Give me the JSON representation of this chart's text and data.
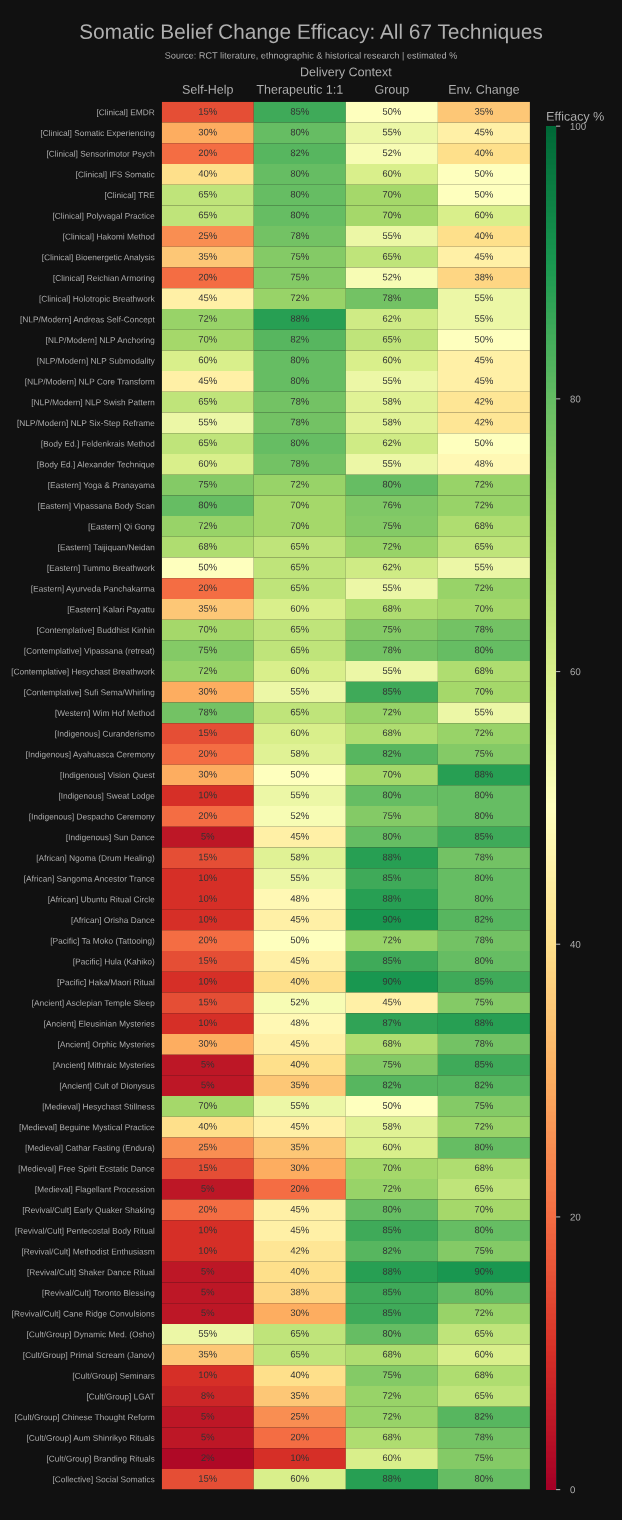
{
  "chart_data": {
    "type": "heatmap",
    "title": "Somatic Belief Change Efficacy: All 67 Techniques",
    "subtitle": "Source: RCT literature, ethnographic & historical research | estimated %",
    "xlabel": "Delivery Context",
    "clabel": "Efficacy %",
    "categories": [
      "Self-Help",
      "Therapeutic 1:1",
      "Group",
      "Env. Change"
    ],
    "y_categories": [
      "[Clinical] EMDR",
      "[Clinical] Somatic Experiencing",
      "[Clinical] Sensorimotor Psych",
      "[Clinical] IFS Somatic",
      "[Clinical] TRE",
      "[Clinical] Polyvagal Practice",
      "[Clinical] Hakomi Method",
      "[Clinical] Bioenergetic Analysis",
      "[Clinical] Reichian Armoring",
      "[Clinical] Holotropic Breathwork",
      "[NLP/Modern] Andreas Self-Concept",
      "[NLP/Modern] NLP Anchoring",
      "[NLP/Modern] NLP Submodality",
      "[NLP/Modern] NLP Core Transform",
      "[NLP/Modern] NLP Swish Pattern",
      "[NLP/Modern] NLP Six-Step Reframe",
      "[Body Ed.] Feldenkrais Method",
      "[Body Ed.] Alexander Technique",
      "[Eastern] Yoga & Pranayama",
      "[Eastern] Vipassana Body Scan",
      "[Eastern] Qi Gong",
      "[Eastern] Taijiquan/Neidan",
      "[Eastern] Tummo Breathwork",
      "[Eastern] Ayurveda Panchakarma",
      "[Eastern] Kalari Payattu",
      "[Contemplative] Buddhist Kinhin",
      "[Contemplative] Vipassana (retreat)",
      "[Contemplative] Hesychast Breathwork",
      "[Contemplative] Sufi Sema/Whirling",
      "[Western] Wim Hof Method",
      "[Indigenous] Curanderismo",
      "[Indigenous] Ayahuasca Ceremony",
      "[Indigenous] Vision Quest",
      "[Indigenous] Sweat Lodge",
      "[Indigenous] Despacho Ceremony",
      "[Indigenous] Sun Dance",
      "[African] Ngoma (Drum Healing)",
      "[African] Sangoma Ancestor Trance",
      "[African] Ubuntu Ritual Circle",
      "[African] Orisha Dance",
      "[Pacific] Ta Moko (Tattooing)",
      "[Pacific] Hula (Kahiko)",
      "[Pacific] Haka/Maori Ritual",
      "[Ancient] Asclepian Temple Sleep",
      "[Ancient] Eleusinian Mysteries",
      "[Ancient] Orphic Mysteries",
      "[Ancient] Mithraic Mysteries",
      "[Ancient] Cult of Dionysus",
      "[Medieval] Hesychast Stillness",
      "[Medieval] Beguine Mystical Practice",
      "[Medieval] Cathar Fasting (Endura)",
      "[Medieval] Free Spirit Ecstatic Dance",
      "[Medieval] Flagellant Procession",
      "[Revival/Cult] Early Quaker Shaking",
      "[Revival/Cult] Pentecostal Body Ritual",
      "[Revival/Cult] Methodist Enthusiasm",
      "[Revival/Cult] Shaker Dance Ritual",
      "[Revival/Cult] Toronto Blessing",
      "[Revival/Cult] Cane Ridge Convulsions",
      "[Cult/Group] Dynamic Med. (Osho)",
      "[Cult/Group] Primal Scream (Janov)",
      "[Cult/Group] Seminars",
      "[Cult/Group] LGAT",
      "[Cult/Group] Chinese Thought Reform",
      "[Cult/Group] Aum Shinrikyo Rituals",
      "[Cult/Group] Branding Rituals",
      "[Collective] Social Somatics"
    ],
    "cells": [
      [
        15,
        85,
        50,
        35
      ],
      [
        30,
        80,
        55,
        45
      ],
      [
        20,
        82,
        52,
        40
      ],
      [
        40,
        80,
        60,
        50
      ],
      [
        65,
        80,
        70,
        50
      ],
      [
        65,
        80,
        70,
        60
      ],
      [
        25,
        78,
        55,
        40
      ],
      [
        35,
        75,
        65,
        45
      ],
      [
        20,
        75,
        52,
        38
      ],
      [
        45,
        72,
        78,
        55
      ],
      [
        72,
        88,
        62,
        55
      ],
      [
        70,
        82,
        65,
        50
      ],
      [
        60,
        80,
        60,
        45
      ],
      [
        45,
        80,
        55,
        45
      ],
      [
        65,
        78,
        58,
        42
      ],
      [
        55,
        78,
        58,
        42
      ],
      [
        65,
        80,
        62,
        50
      ],
      [
        60,
        78,
        55,
        48
      ],
      [
        75,
        72,
        80,
        72
      ],
      [
        80,
        70,
        76,
        72
      ],
      [
        72,
        70,
        75,
        68
      ],
      [
        68,
        65,
        72,
        65
      ],
      [
        50,
        65,
        62,
        55
      ],
      [
        20,
        65,
        55,
        72
      ],
      [
        35,
        60,
        68,
        70
      ],
      [
        70,
        65,
        75,
        78
      ],
      [
        75,
        65,
        78,
        80
      ],
      [
        72,
        60,
        55,
        68
      ],
      [
        30,
        55,
        85,
        70
      ],
      [
        78,
        65,
        72,
        55
      ],
      [
        15,
        60,
        68,
        72
      ],
      [
        20,
        58,
        82,
        75
      ],
      [
        30,
        50,
        70,
        88
      ],
      [
        10,
        55,
        80,
        80
      ],
      [
        20,
        52,
        75,
        80
      ],
      [
        5,
        45,
        80,
        85
      ],
      [
        15,
        58,
        88,
        78
      ],
      [
        10,
        55,
        85,
        80
      ],
      [
        10,
        48,
        88,
        80
      ],
      [
        10,
        45,
        90,
        82
      ],
      [
        20,
        50,
        72,
        78
      ],
      [
        15,
        45,
        85,
        80
      ],
      [
        10,
        40,
        90,
        85
      ],
      [
        15,
        52,
        45,
        75
      ],
      [
        10,
        48,
        87,
        88
      ],
      [
        30,
        45,
        68,
        78
      ],
      [
        5,
        40,
        75,
        85
      ],
      [
        5,
        35,
        82,
        82
      ],
      [
        70,
        55,
        50,
        75
      ],
      [
        40,
        45,
        58,
        72
      ],
      [
        25,
        35,
        60,
        80
      ],
      [
        15,
        30,
        70,
        68
      ],
      [
        5,
        20,
        72,
        65
      ],
      [
        20,
        45,
        80,
        70
      ],
      [
        10,
        45,
        85,
        80
      ],
      [
        10,
        42,
        82,
        75
      ],
      [
        5,
        40,
        88,
        90
      ],
      [
        5,
        38,
        85,
        80
      ],
      [
        5,
        30,
        85,
        72
      ],
      [
        55,
        65,
        80,
        65
      ],
      [
        35,
        65,
        68,
        60
      ],
      [
        10,
        40,
        75,
        68
      ],
      [
        8,
        35,
        72,
        65
      ],
      [
        5,
        25,
        72,
        82
      ],
      [
        5,
        20,
        68,
        78
      ],
      [
        2,
        10,
        60,
        75
      ],
      [
        15,
        60,
        88,
        80
      ]
    ],
    "cell_labels": [
      [
        "15%",
        "85%",
        "50%",
        "35%"
      ],
      [
        "30%",
        "80%",
        "55%",
        "45%"
      ],
      [
        "20%",
        "82%",
        "52%",
        "40%"
      ],
      [
        "40%",
        "80%",
        "60%",
        "50%"
      ],
      [
        "65%",
        "80%",
        "70%",
        "50%"
      ],
      [
        "65%",
        "80%",
        "70%",
        "60%"
      ],
      [
        "25%",
        "78%",
        "55%",
        "40%"
      ],
      [
        "35%",
        "75%",
        "65%",
        "45%"
      ],
      [
        "20%",
        "75%",
        "52%",
        "38%"
      ],
      [
        "45%",
        "72%",
        "78%",
        "55%"
      ],
      [
        "72%",
        "88%",
        "62%",
        "55%"
      ],
      [
        "70%",
        "82%",
        "65%",
        "50%"
      ],
      [
        "60%",
        "80%",
        "60%",
        "45%"
      ],
      [
        "45%",
        "80%",
        "55%",
        "45%"
      ],
      [
        "65%",
        "78%",
        "58%",
        "42%"
      ],
      [
        "55%",
        "78%",
        "58%",
        "42%"
      ],
      [
        "65%",
        "80%",
        "62%",
        "50%"
      ],
      [
        "60%",
        "78%",
        "55%",
        "48%"
      ],
      [
        "75%",
        "72%",
        "80%",
        "72%"
      ],
      [
        "80%",
        "70%",
        "76%",
        "72%"
      ],
      [
        "72%",
        "70%",
        "75%",
        "68%"
      ],
      [
        "68%",
        "65%",
        "72%",
        "65%"
      ],
      [
        "50%",
        "65%",
        "62%",
        "55%"
      ],
      [
        "20%",
        "65%",
        "55%",
        "72%"
      ],
      [
        "35%",
        "60%",
        "68%",
        "70%"
      ],
      [
        "70%",
        "65%",
        "75%",
        "78%"
      ],
      [
        "75%",
        "65%",
        "78%",
        "80%"
      ],
      [
        "72%",
        "60%",
        "55%",
        "68%"
      ],
      [
        "30%",
        "55%",
        "85%",
        "70%"
      ],
      [
        "78%",
        "65%",
        "72%",
        "55%"
      ],
      [
        "15%",
        "60%",
        "68%",
        "72%"
      ],
      [
        "20%",
        "58%",
        "82%",
        "75%"
      ],
      [
        "30%",
        "50%",
        "70%",
        "88%"
      ],
      [
        "10%",
        "55%",
        "80%",
        "80%"
      ],
      [
        "20%",
        "52%",
        "75%",
        "80%"
      ],
      [
        "5%",
        "45%",
        "80%",
        "85%"
      ],
      [
        "15%",
        "58%",
        "88%",
        "78%"
      ],
      [
        "10%",
        "55%",
        "85%",
        "80%"
      ],
      [
        "10%",
        "48%",
        "88%",
        "80%"
      ],
      [
        "10%",
        "45%",
        "90%",
        "82%"
      ],
      [
        "20%",
        "50%",
        "72%",
        "78%"
      ],
      [
        "15%",
        "45%",
        "85%",
        "80%"
      ],
      [
        "10%",
        "40%",
        "90%",
        "85%"
      ],
      [
        "15%",
        "52%",
        "45%",
        "75%"
      ],
      [
        "10%",
        "48%",
        "87%",
        "88%"
      ],
      [
        "30%",
        "45%",
        "68%",
        "78%"
      ],
      [
        "5%",
        "40%",
        "75%",
        "85%"
      ],
      [
        "5%",
        "35%",
        "82%",
        "82%"
      ],
      [
        "70%",
        "55%",
        "50%",
        "75%"
      ],
      [
        "40%",
        "45%",
        "58%",
        "72%"
      ],
      [
        "25%",
        "35%",
        "60%",
        "80%"
      ],
      [
        "15%",
        "30%",
        "70%",
        "68%"
      ],
      [
        "5%",
        "20%",
        "72%",
        "65%"
      ],
      [
        "20%",
        "45%",
        "80%",
        "70%"
      ],
      [
        "10%",
        "45%",
        "85%",
        "80%"
      ],
      [
        "10%",
        "42%",
        "82%",
        "75%"
      ],
      [
        "5%",
        "40%",
        "88%",
        "90%"
      ],
      [
        "5%",
        "38%",
        "85%",
        "80%"
      ],
      [
        "5%",
        "30%",
        "85%",
        "72%"
      ],
      [
        "55%",
        "65%",
        "80%",
        "65%"
      ],
      [
        "35%",
        "65%",
        "68%",
        "60%"
      ],
      [
        "10%",
        "40%",
        "75%",
        "68%"
      ],
      [
        "8%",
        "35%",
        "72%",
        "65%"
      ],
      [
        "5%",
        "25%",
        "72%",
        "82%"
      ],
      [
        "5%",
        "20%",
        "68%",
        "78%"
      ],
      [
        "2%",
        "10%",
        "60%",
        "75%"
      ],
      [
        "15%",
        "60%",
        "88%",
        "80%"
      ]
    ],
    "clim": [
      0,
      100
    ],
    "cticks": [
      0,
      20,
      40,
      60,
      80,
      100
    ]
  }
}
